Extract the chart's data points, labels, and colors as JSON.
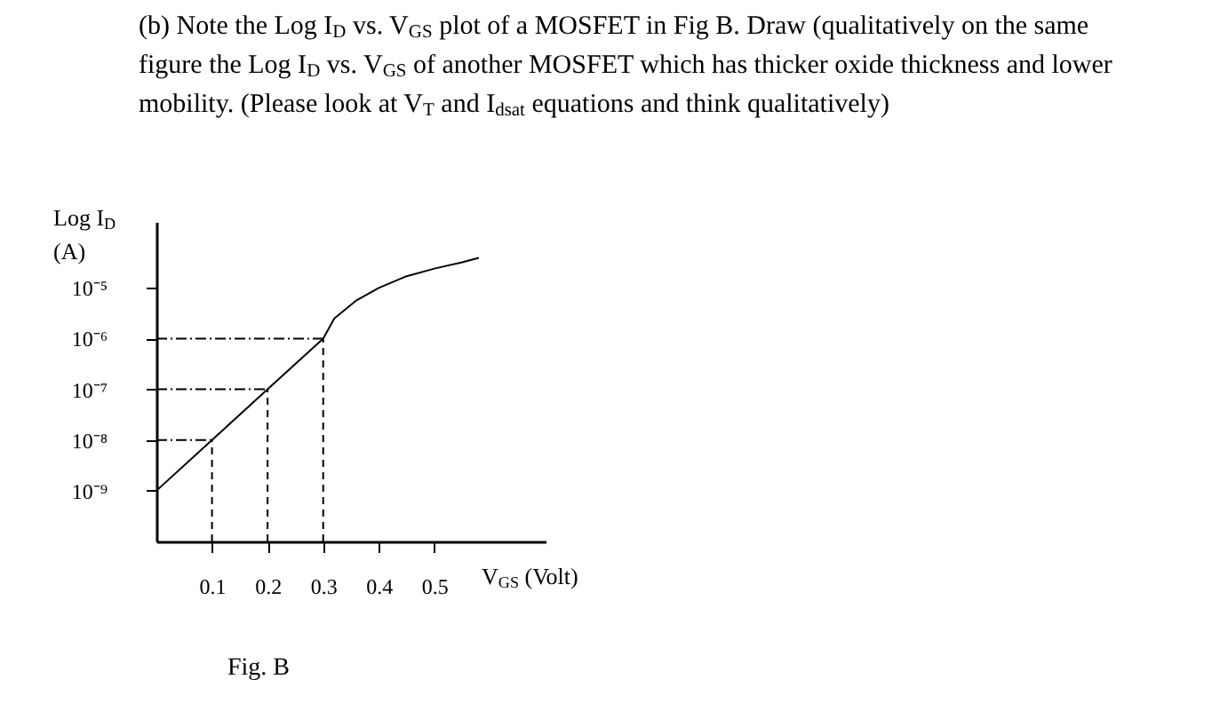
{
  "chart_data": {
    "type": "line",
    "title": "(b) Note the Log I$_{D}$ vs. V$_{GS}$ plot of a MOSFET in Fig B. Draw (qualitatively on the same figure the Log I$_{D}$ vs. V$_{GS}$ of another MOSFET which has thicker oxide thickness and lower mobility. (Please look at V$_{T}$ and I$_{dsat}$ equations and think qualitatively)",
    "xlabel": "V$_{GS}$ (Volt)",
    "ylabel": "Log I$_{D}$ (A)",
    "annotations": [
      "Fig. B"
    ],
    "x": [
      0,
      0.1,
      0.2,
      0.3,
      0.32,
      0.36,
      0.4,
      0.45,
      0.5,
      0.55,
      0.58
    ],
    "series": [
      {
        "color": "#000000",
        "values": [
          1e-09,
          1e-08,
          1e-07,
          1e-06,
          2.5e-06,
          5.7e-06,
          1e-05,
          1.7e-05,
          2.4e-05,
          3.2e-05,
          3.9e-05
        ]
      }
    ],
    "log": "y",
    "xlim": [
      0,
      0.7
    ],
    "ylim": [
      1e-10,
      0.0002
    ],
    "xticks": [
      0.1,
      0.2,
      0.3,
      0.4,
      0.5
    ],
    "yticks": [
      {
        "value": 1e-09,
        "label": "10⁻⁹"
      },
      {
        "value": 1e-08,
        "label": "10⁻⁸"
      },
      {
        "value": 1e-07,
        "label": "10⁻⁷"
      },
      {
        "value": 1e-06,
        "label": "10⁻⁶"
      },
      {
        "value": 1e-05,
        "label": "10⁻⁵"
      }
    ],
    "ref_lines": [
      {
        "axis": "y",
        "value": 1e-08,
        "line_style": "dashed"
      },
      {
        "axis": "y",
        "value": 1e-07,
        "line_style": "dashed"
      },
      {
        "axis": "y",
        "value": 1e-06,
        "line_style": "dashed"
      },
      {
        "axis": "x",
        "value": 0.1,
        "line_style": "dashed"
      },
      {
        "axis": "x",
        "value": 0.2,
        "line_style": "dashed"
      },
      {
        "axis": "x",
        "value": 0.3,
        "line_style": "dashed"
      }
    ],
    "grid": false,
    "marker": "none",
    "line_style": "solid"
  }
}
